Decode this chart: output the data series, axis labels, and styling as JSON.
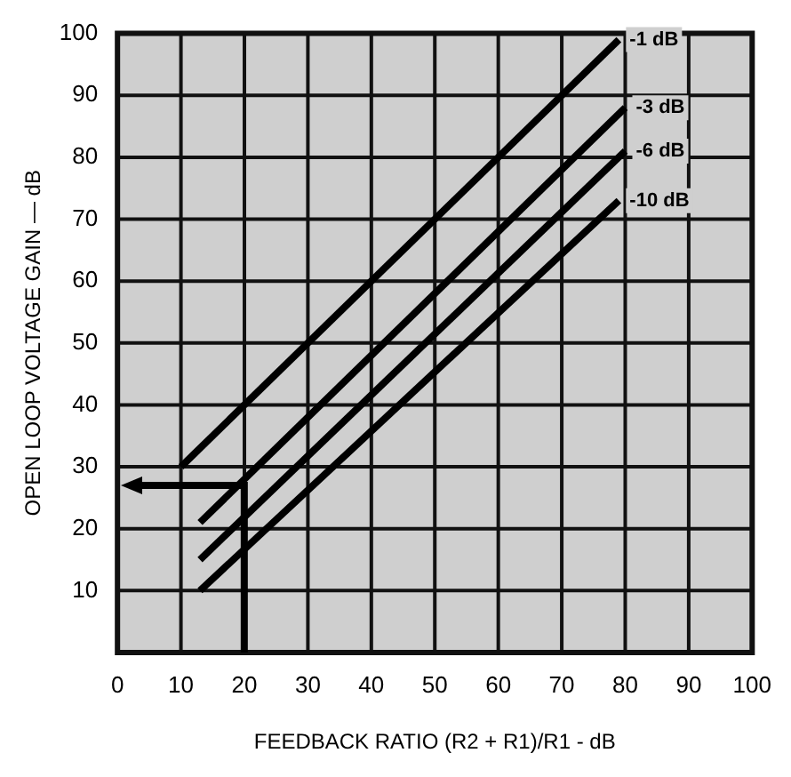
{
  "chart_data": {
    "type": "line",
    "xlabel": "FEEDBACK RATIO (R2 + R1)/R1 - dB",
    "ylabel": "OPEN LOOP VOLTAGE GAIN — dB",
    "series": [
      {
        "name": "-1 dB",
        "color": "#000000",
        "x": [
          10,
          79
        ],
        "values": [
          30,
          99
        ]
      },
      {
        "name": "-3 dB",
        "color": "#000000",
        "x": [
          13,
          80
        ],
        "values": [
          21,
          88
        ]
      },
      {
        "name": "-6 dB",
        "color": "#000000",
        "x": [
          13,
          80
        ],
        "values": [
          15,
          81
        ]
      },
      {
        "name": "-10 dB",
        "color": "#000000",
        "x": [
          13,
          79
        ],
        "values": [
          10,
          73
        ]
      }
    ],
    "xlim": [
      0,
      100
    ],
    "xticks": [
      0,
      10,
      20,
      30,
      40,
      50,
      60,
      70,
      80,
      90,
      100
    ],
    "ylim": [
      0,
      100
    ],
    "yticks": [
      10,
      20,
      30,
      40,
      50,
      60,
      70,
      80,
      90,
      100
    ],
    "grid": true,
    "legend": false,
    "marker": "none",
    "line_style": "solid"
  }
}
